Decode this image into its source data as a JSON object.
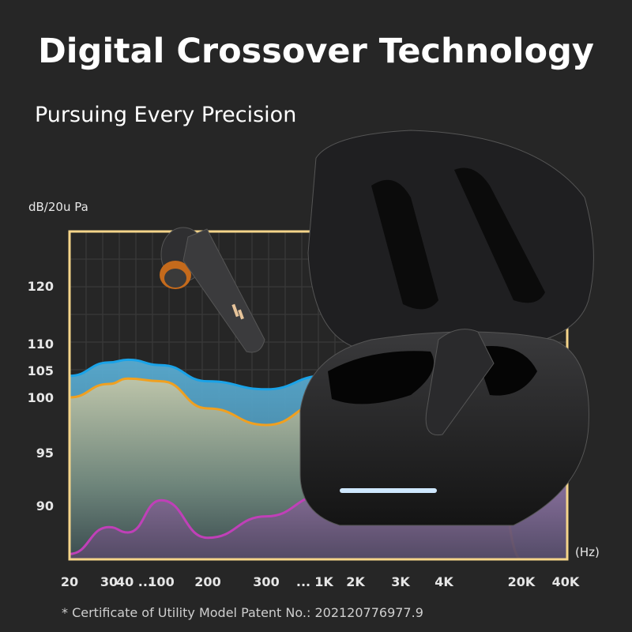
{
  "header": {
    "title": "Digital Crossover Technology",
    "subtitle": "Pursuing Every Precision"
  },
  "footnote": {
    "text": "* Certificate of Utility Model Patent     No.: 202120776977.9"
  },
  "colors": {
    "background": "#262626",
    "frame": "#f5d58a",
    "blue": "#1aa3e8",
    "orange": "#f0a020",
    "magenta": "#c040b8"
  },
  "product": {
    "icons": [
      "earbud-image",
      "charging-case-image"
    ]
  },
  "chart_data": {
    "type": "area",
    "ylabel": "dB/20u Pa",
    "xlabel": "(Hz)",
    "x_tick_labels": [
      "20",
      "30",
      "40 ...",
      "100",
      "200",
      "300",
      "...",
      "1K",
      "2K",
      "3K",
      "4K",
      "20K",
      "40K"
    ],
    "y_tick_labels": [
      "120",
      "110",
      "105",
      "100",
      "95",
      "90"
    ],
    "y_ticks": [
      120,
      110,
      105,
      100,
      95,
      90
    ],
    "grid": true,
    "x": [
      "20",
      "30",
      "40",
      "100",
      "200",
      "300",
      "1K",
      "2K",
      "20K"
    ],
    "series": [
      {
        "color": "#1aa3e8",
        "values": [
          104,
          106.5,
          107,
          106,
          103,
          101.5,
          104,
          106,
          null
        ]
      },
      {
        "color": "#f0a020",
        "values": [
          100,
          102.5,
          103.5,
          103,
          99,
          97.5,
          99.5,
          101,
          85
        ]
      },
      {
        "color": "#c040b8",
        "values": [
          85.5,
          88,
          87.5,
          90.5,
          87,
          89,
          91,
          92,
          null
        ]
      }
    ]
  }
}
